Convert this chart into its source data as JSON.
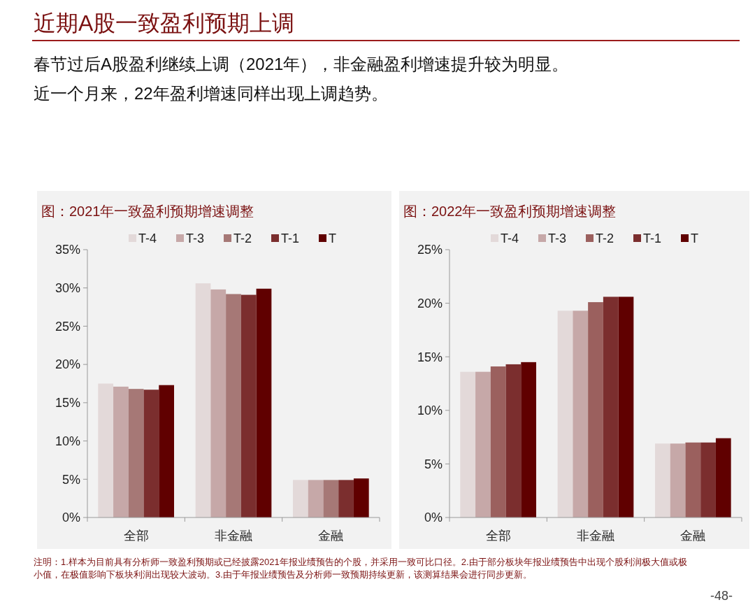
{
  "chart_data": [
    {
      "type": "other",
      "title": "近期A股一致盈利预期上调",
      "subtitle": "春节过后A股盈利继续上调（2021年），非金融盈利增速提升较为明显。近一个月来，22年盈利增速同样出现上调趋势。",
      "annotations": [
        "注明：1.样本为目前具有分析师一致盈利预期或已经披露2021年报业绩预告的个股，并采用一致可比口径。2.由于部分板块年报业绩预告中出现个股利润极大值或极小值，在极值影响下板块利润出现较大波动。3.由于年报业绩预告及分析师一致预期持续更新，该测算结果会进行同步更新。",
        "-48-"
      ]
    },
    {
      "type": "bar",
      "title": "图：2021年一致盈利预期增速调整",
      "categories": [
        "全部",
        "非金融",
        "金融"
      ],
      "ylim": [
        0,
        35
      ],
      "yticks": [
        {
          "value": 0,
          "label": "0%"
        },
        {
          "value": 5,
          "label": "5%"
        },
        {
          "value": 10,
          "label": "10%"
        },
        {
          "value": 15,
          "label": "15%"
        },
        {
          "value": 20,
          "label": "20%"
        },
        {
          "value": 25,
          "label": "25%"
        },
        {
          "value": 30,
          "label": "30%"
        },
        {
          "value": 35,
          "label": "35%"
        }
      ],
      "legend": "top",
      "grid": false,
      "series": [
        {
          "name": "T-4",
          "color": "#e3d9d9",
          "values": [
            17.5,
            30.6,
            4.9
          ]
        },
        {
          "name": "T-3",
          "color": "#c6a8a8",
          "values": [
            17.1,
            29.8,
            4.9
          ]
        },
        {
          "name": "T-2",
          "color": "#a67876",
          "values": [
            16.8,
            29.2,
            4.9
          ]
        },
        {
          "name": "T-1",
          "color": "#7b2e2e",
          "values": [
            16.7,
            29.1,
            4.9
          ]
        },
        {
          "name": "T",
          "color": "#600000",
          "values": [
            17.3,
            29.9,
            5.1
          ]
        }
      ]
    },
    {
      "type": "bar",
      "title": "图：2022年一致盈利预期增速调整",
      "categories": [
        "全部",
        "非金融",
        "金融"
      ],
      "ylim": [
        0,
        25
      ],
      "yticks": [
        {
          "value": 0,
          "label": "0%"
        },
        {
          "value": 5,
          "label": "5%"
        },
        {
          "value": 10,
          "label": "10%"
        },
        {
          "value": 15,
          "label": "15%"
        },
        {
          "value": 20,
          "label": "20%"
        },
        {
          "value": 25,
          "label": "25%"
        }
      ],
      "legend": "top",
      "grid": false,
      "series": [
        {
          "name": "T-4",
          "color": "#e3d9d9",
          "values": [
            13.6,
            19.3,
            6.9
          ]
        },
        {
          "name": "T-3",
          "color": "#c6a8a8",
          "values": [
            13.6,
            19.3,
            6.9
          ]
        },
        {
          "name": "T-2",
          "color": "#9b605e",
          "values": [
            14.1,
            20.1,
            7.0
          ]
        },
        {
          "name": "T-1",
          "color": "#7b2e2e",
          "values": [
            14.3,
            20.6,
            7.0
          ]
        },
        {
          "name": "T",
          "color": "#600000",
          "values": [
            14.5,
            20.6,
            7.4
          ]
        }
      ]
    }
  ]
}
